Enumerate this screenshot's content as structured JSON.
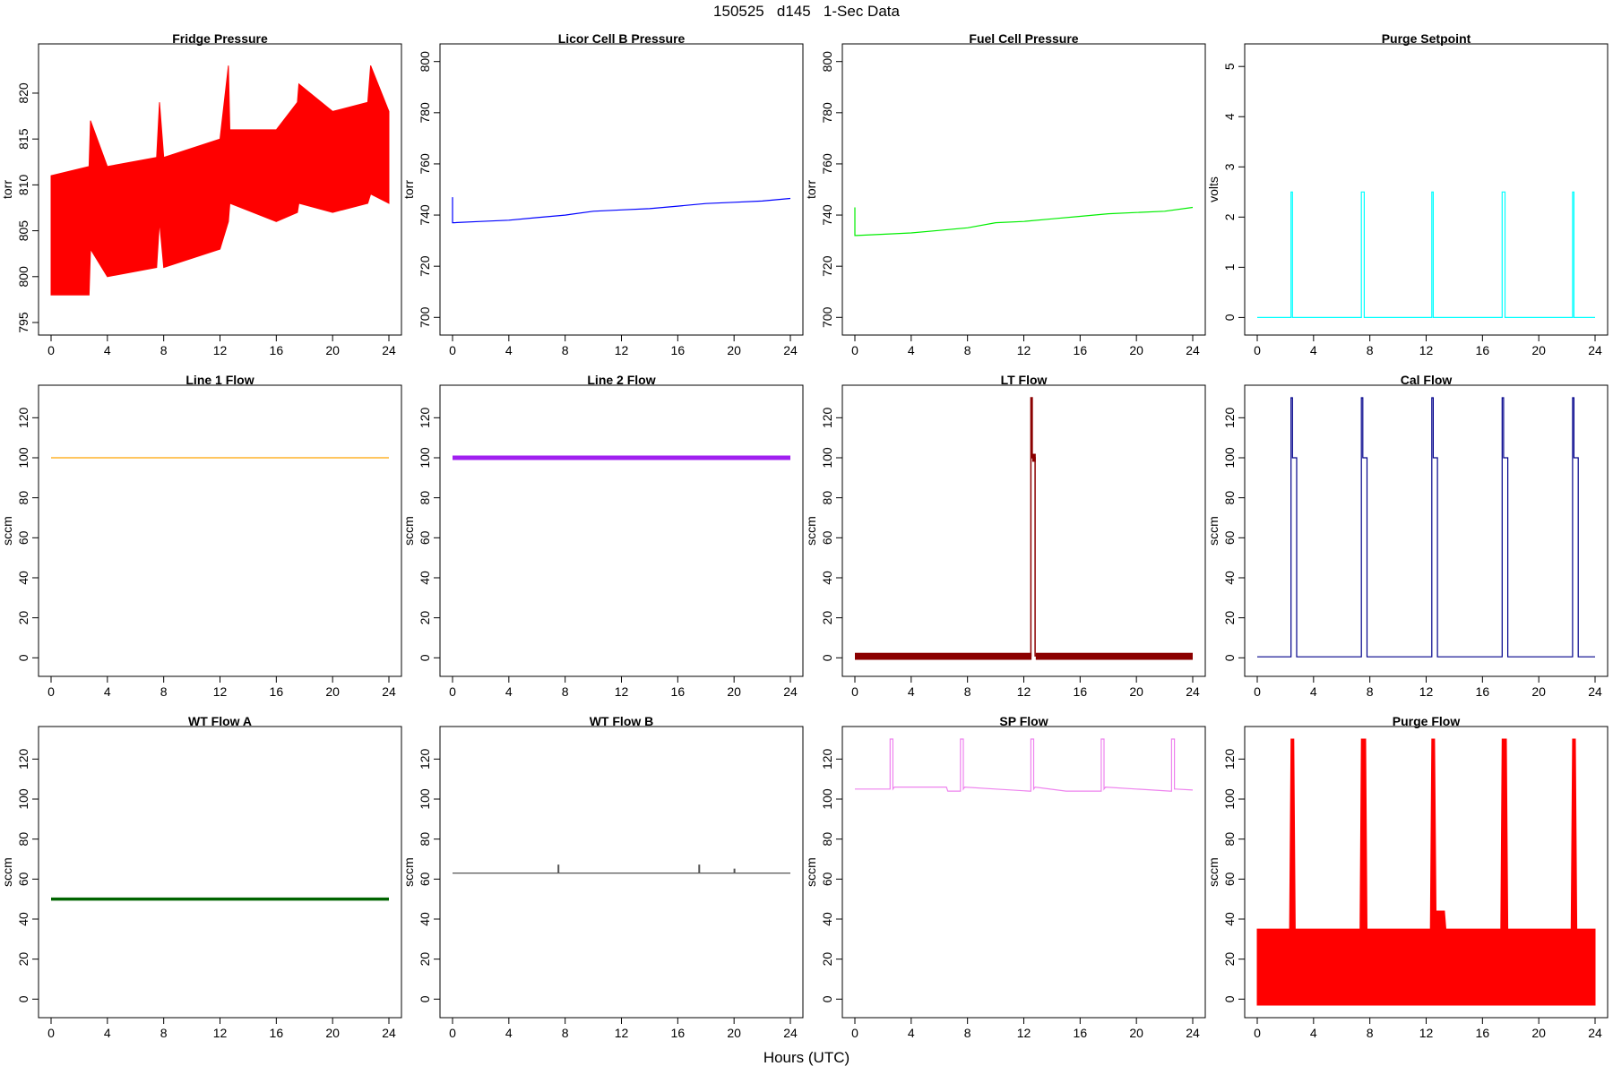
{
  "figure": {
    "title": "150525   d145   1-Sec Data",
    "xlabel": "Hours (UTC)"
  },
  "chart_data": [
    {
      "type": "line",
      "title": "Fridge Pressure",
      "ylabel": "torr",
      "color": "#ff0000",
      "xlim": [
        0,
        24
      ],
      "ylim": [
        795,
        824
      ],
      "xticks": [
        0,
        4,
        8,
        12,
        16,
        20,
        24
      ],
      "yticks": [
        795,
        800,
        805,
        810,
        815,
        820
      ],
      "style": "band",
      "band": {
        "x": [
          0,
          2.7,
          2.8,
          4,
          7.5,
          7.7,
          8,
          12,
          12.6,
          12.7,
          16,
          17.5,
          17.6,
          20,
          22.5,
          22.7,
          24
        ],
        "low": [
          798,
          798,
          803,
          800,
          801,
          806,
          801,
          803,
          806,
          808,
          806,
          807,
          808,
          807,
          808,
          809,
          808
        ],
        "high": [
          811,
          812,
          817,
          812,
          813,
          819,
          813,
          815,
          823,
          816,
          816,
          819,
          821,
          818,
          819,
          823,
          818
        ]
      }
    },
    {
      "type": "line",
      "title": "Licor Cell B Pressure",
      "ylabel": "torr",
      "color": "#0000ff",
      "xlim": [
        0,
        24
      ],
      "ylim": [
        698,
        802
      ],
      "xticks": [
        0,
        4,
        8,
        12,
        16,
        20,
        24
      ],
      "yticks": [
        700,
        720,
        740,
        760,
        780,
        800
      ],
      "style": "line",
      "x": [
        0,
        0,
        0.1,
        2,
        4,
        6,
        8,
        10,
        12,
        14,
        16,
        18,
        20,
        22,
        24
      ],
      "y": [
        747,
        737,
        737,
        737.5,
        738,
        739,
        740,
        741.5,
        742,
        742.5,
        743.5,
        744.5,
        745,
        745.5,
        746.5
      ]
    },
    {
      "type": "line",
      "title": "Fuel Cell Pressure",
      "ylabel": "torr",
      "color": "#00ee00",
      "xlim": [
        0,
        24
      ],
      "ylim": [
        698,
        802
      ],
      "xticks": [
        0,
        4,
        8,
        12,
        16,
        20,
        24
      ],
      "yticks": [
        700,
        720,
        740,
        760,
        780,
        800
      ],
      "style": "line",
      "x": [
        0,
        0,
        0.1,
        2,
        4,
        6,
        8,
        10,
        12,
        14,
        16,
        18,
        20,
        22,
        24
      ],
      "y": [
        743,
        732,
        732,
        732.5,
        733,
        734,
        735,
        737,
        737.5,
        738.5,
        739.5,
        740.5,
        741,
        741.5,
        743
      ]
    },
    {
      "type": "line",
      "title": "Purge Setpoint",
      "ylabel": "volts",
      "color": "#00ffff",
      "xlim": [
        0,
        24
      ],
      "ylim": [
        -0.1,
        5.2
      ],
      "xticks": [
        0,
        4,
        8,
        12,
        16,
        20,
        24
      ],
      "yticks": [
        0,
        1,
        2,
        3,
        4,
        5
      ],
      "style": "line",
      "x": [
        0,
        2.4,
        2.4,
        2.5,
        2.5,
        7.4,
        7.4,
        7.6,
        7.6,
        12.4,
        12.4,
        12.5,
        12.5,
        17.4,
        17.4,
        17.6,
        17.6,
        22.4,
        22.4,
        22.5,
        22.5,
        24
      ],
      "y": [
        0,
        0,
        2.5,
        2.5,
        0,
        0,
        2.5,
        2.5,
        0,
        0,
        2.5,
        2.5,
        0,
        0,
        2.5,
        2.5,
        0,
        0,
        2.5,
        2.5,
        0,
        0
      ]
    },
    {
      "type": "line",
      "title": "Line 1 Flow",
      "ylabel": "sccm",
      "color": "#ffa500",
      "xlim": [
        0,
        24
      ],
      "ylim": [
        -3,
        130
      ],
      "xticks": [
        0,
        4,
        8,
        12,
        16,
        20,
        24
      ],
      "yticks": [
        0,
        20,
        40,
        60,
        80,
        100,
        120
      ],
      "style": "line",
      "width": 1.2,
      "x": [
        0,
        24
      ],
      "y": [
        100,
        100
      ]
    },
    {
      "type": "line",
      "title": "Line 2 Flow",
      "ylabel": "sccm",
      "color": "#a020f0",
      "xlim": [
        0,
        24
      ],
      "ylim": [
        -3,
        130
      ],
      "xticks": [
        0,
        4,
        8,
        12,
        16,
        20,
        24
      ],
      "yticks": [
        0,
        20,
        40,
        60,
        80,
        100,
        120
      ],
      "style": "line",
      "width": 5,
      "x": [
        0,
        24
      ],
      "y": [
        100,
        100
      ]
    },
    {
      "type": "line",
      "title": "LT Flow",
      "ylabel": "sccm",
      "color": "#8b0000",
      "xlim": [
        0,
        24
      ],
      "ylim": [
        -3,
        130
      ],
      "xticks": [
        0,
        4,
        8,
        12,
        16,
        20,
        24
      ],
      "yticks": [
        0,
        20,
        40,
        60,
        80,
        100,
        120
      ],
      "style": "line",
      "width": 1.5,
      "x": [
        0,
        12.5,
        12.5,
        12.6,
        12.6,
        12.8,
        12.8,
        24
      ],
      "y": [
        1,
        1,
        130,
        130,
        100,
        100,
        1,
        1
      ],
      "fills": [
        {
          "x0": 0,
          "x1": 12.55,
          "y0": -1,
          "y1": 2.5
        },
        {
          "x0": 12.85,
          "x1": 24,
          "y0": -1,
          "y1": 2.5
        },
        {
          "x0": 12.6,
          "x1": 12.85,
          "y0": 98,
          "y1": 102
        }
      ]
    },
    {
      "type": "line",
      "title": "Cal Flow",
      "ylabel": "sccm",
      "color": "#00008b",
      "xlim": [
        0,
        24
      ],
      "ylim": [
        -3,
        130
      ],
      "xticks": [
        0,
        4,
        8,
        12,
        16,
        20,
        24
      ],
      "yticks": [
        0,
        20,
        40,
        60,
        80,
        100,
        120
      ],
      "style": "line",
      "x": [
        0,
        2.4,
        2.4,
        2.5,
        2.5,
        2.8,
        2.8,
        7.4,
        7.4,
        7.5,
        7.5,
        7.8,
        7.8,
        12.4,
        12.4,
        12.5,
        12.5,
        12.8,
        12.8,
        17.4,
        17.4,
        17.5,
        17.5,
        17.8,
        17.8,
        22.4,
        22.4,
        22.5,
        22.5,
        22.8,
        22.8,
        24
      ],
      "y": [
        0.5,
        0.5,
        130,
        130,
        100,
        100,
        0.5,
        0.5,
        130,
        130,
        100,
        100,
        0.5,
        0.5,
        130,
        130,
        100,
        100,
        0.5,
        0.5,
        130,
        130,
        100,
        100,
        0.5,
        0.5,
        130,
        130,
        100,
        100,
        0.5,
        0.5
      ]
    },
    {
      "type": "line",
      "title": "WT Flow A",
      "ylabel": "sccm",
      "color": "#006400",
      "xlim": [
        0,
        24
      ],
      "ylim": [
        -3,
        130
      ],
      "xticks": [
        0,
        4,
        8,
        12,
        16,
        20,
        24
      ],
      "yticks": [
        0,
        20,
        40,
        60,
        80,
        100,
        120
      ],
      "style": "line",
      "width": 3.5,
      "x": [
        0,
        24
      ],
      "y": [
        50,
        50
      ]
    },
    {
      "type": "line",
      "title": "WT Flow B",
      "ylabel": "sccm",
      "color": "#555555",
      "xlim": [
        0,
        24
      ],
      "ylim": [
        -3,
        130
      ],
      "xticks": [
        0,
        4,
        8,
        12,
        16,
        20,
        24
      ],
      "yticks": [
        0,
        20,
        40,
        60,
        80,
        100,
        120
      ],
      "style": "line",
      "width": 1.2,
      "x": [
        0,
        7.5,
        7.5,
        7.55,
        7.55,
        17.5,
        17.5,
        17.55,
        17.55,
        20,
        20,
        20.05,
        20.05,
        24
      ],
      "y": [
        63,
        63,
        67,
        67,
        63,
        63,
        67,
        67,
        63,
        63,
        65,
        65,
        63,
        63
      ]
    },
    {
      "type": "line",
      "title": "SP Flow",
      "ylabel": "sccm",
      "color": "#ee82ee",
      "xlim": [
        0,
        24
      ],
      "ylim": [
        -3,
        130
      ],
      "xticks": [
        0,
        4,
        8,
        12,
        16,
        20,
        24
      ],
      "yticks": [
        0,
        20,
        40,
        60,
        80,
        100,
        120
      ],
      "style": "line",
      "x": [
        0,
        2.4,
        2.5,
        2.5,
        2.6,
        2.7,
        2.7,
        2.8,
        5,
        6.5,
        6.6,
        7.4,
        7.5,
        7.5,
        7.6,
        7.7,
        7.7,
        7.8,
        10,
        12.4,
        12.5,
        12.5,
        12.6,
        12.7,
        12.7,
        12.8,
        15,
        17.4,
        17.5,
        17.5,
        17.6,
        17.7,
        17.7,
        17.8,
        20,
        22.4,
        22.5,
        22.5,
        22.6,
        22.7,
        22.7,
        22.8,
        24
      ],
      "y": [
        105,
        105,
        105,
        130,
        130,
        130,
        105,
        106,
        106,
        106,
        104,
        104,
        104,
        130,
        130,
        130,
        105,
        106,
        105,
        104,
        104,
        130,
        130,
        130,
        105,
        106,
        104,
        104,
        104,
        130,
        130,
        130,
        105,
        106,
        105,
        104,
        104,
        130,
        130,
        130,
        105,
        105,
        104.5
      ]
    },
    {
      "type": "line",
      "title": "Purge Flow",
      "ylabel": "sccm",
      "color": "#ff0000",
      "xlim": [
        0,
        24
      ],
      "ylim": [
        -3,
        130
      ],
      "xticks": [
        0,
        4,
        8,
        12,
        16,
        20,
        24
      ],
      "yticks": [
        0,
        20,
        40,
        60,
        80,
        100,
        120
      ],
      "style": "band",
      "band": {
        "x": [
          0,
          2.3,
          2.4,
          2.6,
          2.7,
          7.3,
          7.4,
          7.7,
          7.8,
          12.3,
          12.4,
          12.6,
          12.7,
          13.3,
          13.4,
          17.3,
          17.4,
          17.7,
          17.8,
          22.3,
          22.4,
          22.6,
          22.7,
          24
        ],
        "low": [
          -3,
          -3,
          -3,
          -3,
          -3,
          -3,
          -3,
          -3,
          -3,
          -3,
          -3,
          -3,
          -3,
          -3,
          -3,
          -3,
          -3,
          -3,
          -3,
          -3,
          -3,
          -3,
          -3,
          -3
        ],
        "high": [
          35,
          35,
          130,
          130,
          35,
          35,
          130,
          130,
          35,
          35,
          130,
          130,
          44,
          44,
          35,
          35,
          130,
          130,
          35,
          35,
          130,
          130,
          35,
          35
        ]
      }
    }
  ]
}
